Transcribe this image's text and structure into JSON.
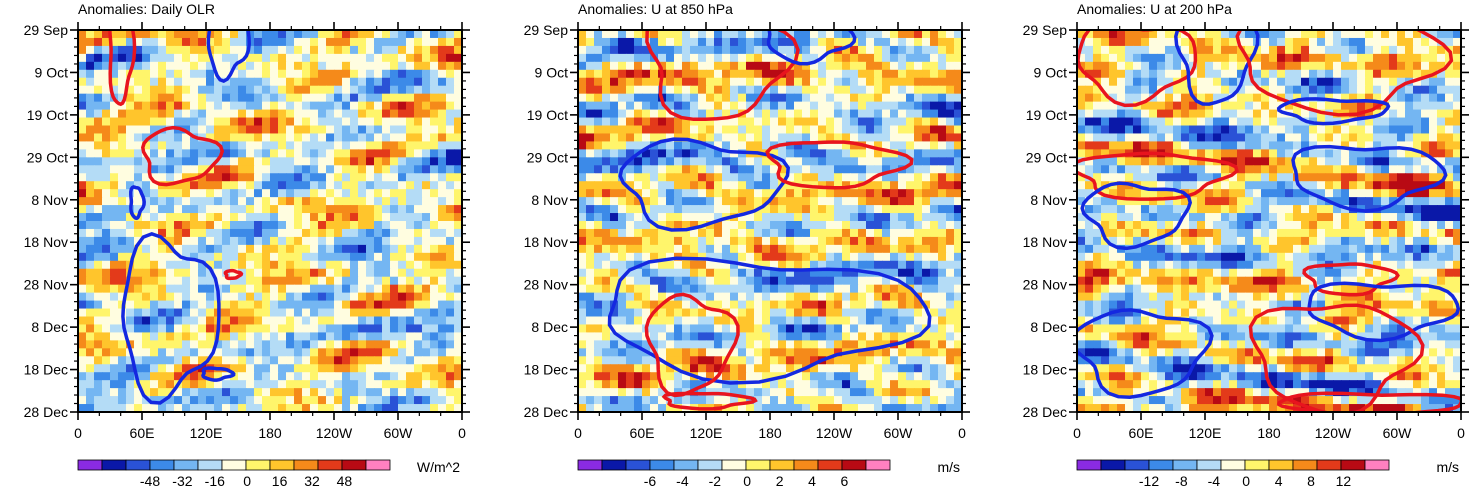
{
  "chart_data": [
    {
      "type": "heatmap",
      "title": "Anomalies: Daily OLR",
      "units": "W/m^2",
      "x_tick_labels": [
        "0",
        "60E",
        "120E",
        "180",
        "120W",
        "60W",
        "0"
      ],
      "y_tick_labels": [
        "29 Sep",
        "9 Oct",
        "19 Oct",
        "29 Oct",
        "8 Nov",
        "18 Nov",
        "28 Nov",
        "8 Dec",
        "18 Dec",
        "28 Dec"
      ],
      "xlim": [
        0,
        360
      ],
      "colorbar_labels": [
        "-48",
        "-32",
        "-16",
        "0",
        "16",
        "32",
        "48"
      ],
      "colorbar_range": [
        -60,
        60
      ],
      "contours": [
        {
          "sign": "positive",
          "center": [
            40,
            5
          ],
          "size": [
            22,
            28
          ]
        },
        {
          "sign": "negative",
          "center": [
            140,
            2
          ],
          "size": [
            38,
            20
          ]
        },
        {
          "sign": "positive",
          "center": [
            95,
            33
          ],
          "size": [
            70,
            14
          ]
        },
        {
          "sign": "negative",
          "center": [
            55,
            45
          ],
          "size": [
            12,
            8
          ]
        },
        {
          "sign": "negative",
          "center": [
            85,
            75
          ],
          "size": [
            90,
            40
          ]
        },
        {
          "sign": "positive",
          "center": [
            145,
            64
          ],
          "size": [
            14,
            2
          ]
        },
        {
          "sign": "negative",
          "center": [
            130,
            90
          ],
          "size": [
            28,
            3
          ]
        }
      ]
    },
    {
      "type": "heatmap",
      "title": "Anomalies: U at 850 hPa",
      "units": "m/s",
      "x_tick_labels": [
        "0",
        "60E",
        "120E",
        "180",
        "120W",
        "60W",
        "0"
      ],
      "y_tick_labels": [
        "29 Sep",
        "9 Oct",
        "19 Oct",
        "29 Oct",
        "8 Nov",
        "18 Nov",
        "28 Nov",
        "8 Dec",
        "18 Dec",
        "28 Dec"
      ],
      "xlim": [
        0,
        360
      ],
      "colorbar_labels": [
        "-6",
        "-4",
        "-2",
        "0",
        "2",
        "4",
        "6"
      ],
      "colorbar_range": [
        -7.5,
        7.5
      ],
      "contours": [
        {
          "sign": "positive",
          "center": [
            130,
            8
          ],
          "size": [
            130,
            30
          ]
        },
        {
          "sign": "negative",
          "center": [
            215,
            2
          ],
          "size": [
            80,
            12
          ]
        },
        {
          "sign": "negative",
          "center": [
            115,
            40
          ],
          "size": [
            150,
            22
          ]
        },
        {
          "sign": "positive",
          "center": [
            240,
            35
          ],
          "size": [
            125,
            12
          ]
        },
        {
          "sign": "negative",
          "center": [
            170,
            75
          ],
          "size": [
            300,
            30
          ]
        },
        {
          "sign": "positive",
          "center": [
            105,
            82
          ],
          "size": [
            80,
            25
          ]
        },
        {
          "sign": "positive",
          "center": [
            120,
            97
          ],
          "size": [
            80,
            4
          ]
        }
      ]
    },
    {
      "type": "heatmap",
      "title": "Anomalies: U at 200 hPa",
      "units": "m/s",
      "x_tick_labels": [
        "0",
        "60E",
        "120E",
        "180",
        "120W",
        "60W",
        "0"
      ],
      "y_tick_labels": [
        "29 Sep",
        "9 Oct",
        "19 Oct",
        "29 Oct",
        "8 Nov",
        "18 Nov",
        "28 Nov",
        "8 Dec",
        "18 Dec",
        "28 Dec"
      ],
      "xlim": [
        0,
        360
      ],
      "colorbar_labels": [
        "-12",
        "-8",
        "-4",
        "0",
        "4",
        "8",
        "12"
      ],
      "colorbar_range": [
        -15,
        15
      ],
      "contours": [
        {
          "sign": "positive",
          "center": [
            55,
            8
          ],
          "size": [
            110,
            20
          ]
        },
        {
          "sign": "negative",
          "center": [
            130,
            6
          ],
          "size": [
            70,
            25
          ]
        },
        {
          "sign": "positive",
          "center": [
            245,
            8
          ],
          "size": [
            190,
            25
          ]
        },
        {
          "sign": "negative",
          "center": [
            240,
            21
          ],
          "size": [
            100,
            6
          ]
        },
        {
          "sign": "positive",
          "center": [
            70,
            38
          ],
          "size": [
            140,
            12
          ]
        },
        {
          "sign": "negative",
          "center": [
            270,
            38
          ],
          "size": [
            140,
            16
          ]
        },
        {
          "sign": "negative",
          "center": [
            55,
            48
          ],
          "size": [
            95,
            16
          ]
        },
        {
          "sign": "positive",
          "center": [
            255,
            65
          ],
          "size": [
            80,
            8
          ]
        },
        {
          "sign": "negative",
          "center": [
            285,
            73
          ],
          "size": [
            140,
            14
          ]
        },
        {
          "sign": "negative",
          "center": [
            60,
            84
          ],
          "size": [
            120,
            22
          ]
        },
        {
          "sign": "positive",
          "center": [
            240,
            85
          ],
          "size": [
            150,
            28
          ]
        },
        {
          "sign": "positive",
          "center": [
            275,
            98
          ],
          "size": [
            170,
            6
          ]
        }
      ]
    }
  ]
}
